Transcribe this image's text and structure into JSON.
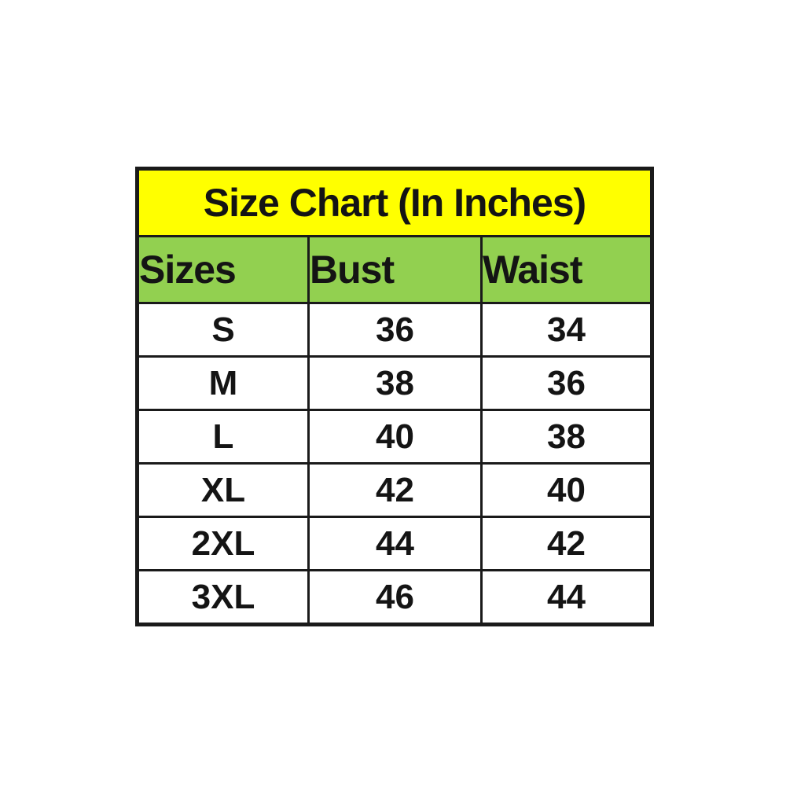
{
  "table": {
    "title": "Size Chart (In Inches)",
    "columns": [
      "Sizes",
      "Bust",
      "Waist"
    ],
    "rows": [
      {
        "size": "S",
        "bust": "36",
        "waist": "34"
      },
      {
        "size": "M",
        "bust": "38",
        "waist": "36"
      },
      {
        "size": "L",
        "bust": "40",
        "waist": "38"
      },
      {
        "size": "XL",
        "bust": "42",
        "waist": "40"
      },
      {
        "size": "2XL",
        "bust": "44",
        "waist": "42"
      },
      {
        "size": "3XL",
        "bust": "46",
        "waist": "44"
      }
    ],
    "colors": {
      "title_background": "#FFFF00",
      "header_background": "#92D050",
      "grid_border": "#1A1A1A",
      "text": "#141414",
      "row_background": "#FFFFFF"
    }
  },
  "chart_data": {
    "type": "table",
    "title": "Size Chart (In Inches)",
    "columns": [
      "Sizes",
      "Bust",
      "Waist"
    ],
    "rows": [
      [
        "S",
        36,
        34
      ],
      [
        "M",
        38,
        36
      ],
      [
        "L",
        40,
        38
      ],
      [
        "XL",
        42,
        40
      ],
      [
        "2XL",
        44,
        42
      ],
      [
        "3XL",
        46,
        44
      ]
    ],
    "units": "inches",
    "layout": "title row merged across 3 columns; header row green; 6 data rows white; thick black gridlines"
  }
}
